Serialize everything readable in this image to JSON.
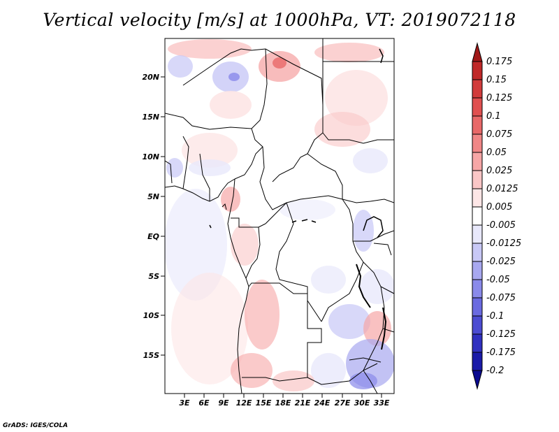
{
  "title": "Vertical velocity [m/s] at 1000hPa, VT: 2019072118",
  "credit": "GrADS: IGES/COLA",
  "map": {
    "lat_labels": [
      "20N",
      "15N",
      "10N",
      "5N",
      "EQ",
      "5S",
      "10S",
      "15S"
    ],
    "lon_labels": [
      "3E",
      "6E",
      "9E",
      "12E",
      "15E",
      "18E",
      "21E",
      "24E",
      "27E",
      "30E",
      "33E"
    ]
  },
  "colorbar": {
    "labels": [
      "0.175",
      "0.15",
      "0.125",
      "0.1",
      "0.075",
      "0.05",
      "0.025",
      "0.0125",
      "0.005",
      "-0.005",
      "-0.0125",
      "-0.025",
      "-0.05",
      "-0.075",
      "-0.1",
      "-0.125",
      "-0.175",
      "-0.2"
    ],
    "colors": [
      "#a01818",
      "#c02828",
      "#d23c3c",
      "#e05050",
      "#e86868",
      "#f08686",
      "#f6a6a6",
      "#fac6c6",
      "#fde6e6",
      "#ffffff",
      "#e8e8fb",
      "#c8c8f6",
      "#a8a8f0",
      "#8a8aea",
      "#6a6ae0",
      "#4c4cd2",
      "#3030c0",
      "#1a1aa8",
      "#0a0a90"
    ]
  }
}
